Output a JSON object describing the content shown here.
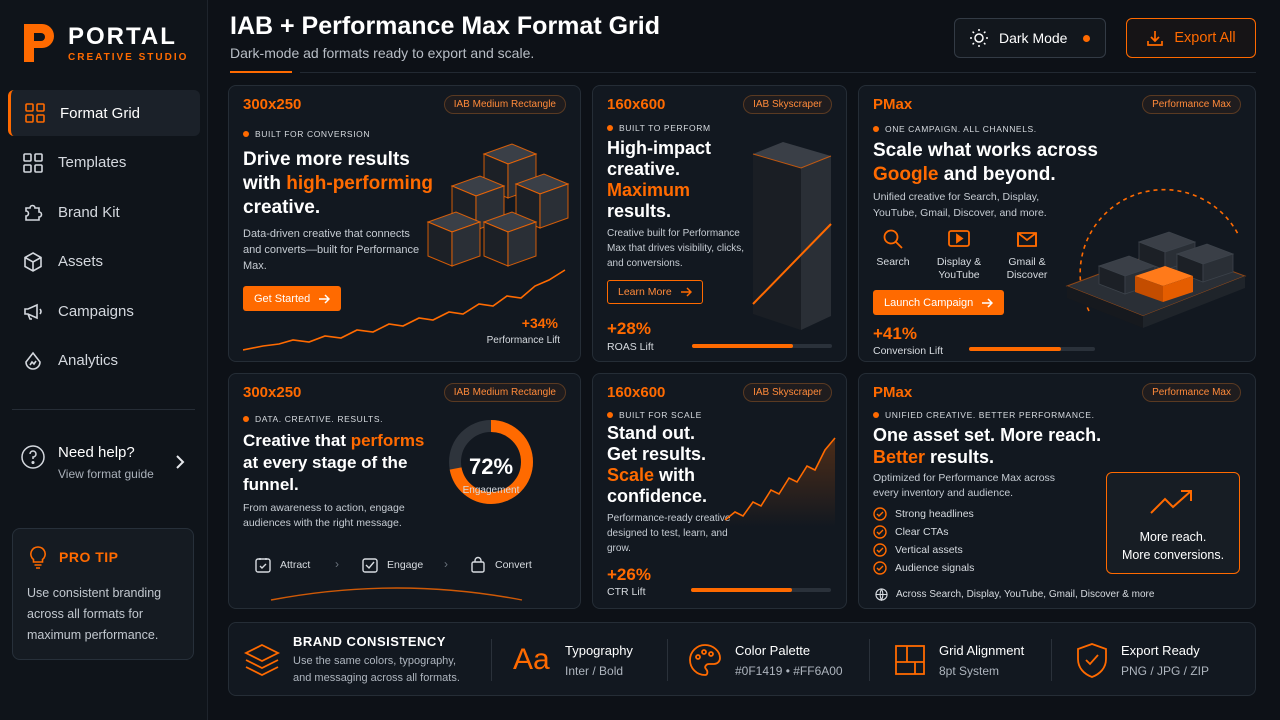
{
  "sidebar": {
    "brand": "PORTAL",
    "brand_sub": "CREATIVE STUDIO",
    "items": [
      {
        "label": "Format Grid"
      },
      {
        "label": "Templates"
      },
      {
        "label": "Brand Kit"
      },
      {
        "label": "Assets"
      },
      {
        "label": "Campaigns"
      },
      {
        "label": "Analytics"
      }
    ],
    "help_title": "Need help?",
    "help_sub": "View format guide",
    "tip_title": "PRO TIP",
    "tip_body": "Use consistent branding across all formats for maximum performance."
  },
  "header": {
    "title": "IAB + Performance Max Format Grid",
    "subtitle": "Dark-mode ad formats ready to export and scale.",
    "dark_mode_label": "Dark Mode",
    "export_label": "Export All"
  },
  "cards": {
    "c1": {
      "size": "300x250",
      "badge": "IAB Medium Rectangle",
      "kicker": "BUILT FOR CONVERSION",
      "h_a": "Drive more results",
      "h_b": "with ",
      "h_c": "high-performing",
      "h_d": "creative.",
      "body": "Data-driven creative that connects and converts—built for Performance Max.",
      "cta": "Get Started",
      "stat": "+34%",
      "stat_label": "Performance Lift"
    },
    "c2": {
      "size": "160x600",
      "badge": "IAB Skyscraper",
      "kicker": "BUILT TO PERFORM",
      "h_a": "High-impact",
      "h_b": "creative.",
      "h_c": "Maximum",
      "h_d": "results.",
      "body": "Creative built for Performance Max that drives visibility, clicks, and conversions.",
      "cta": "Learn More",
      "stat": "+28%",
      "stat_label": "ROAS Lift",
      "progress": 0.72
    },
    "c3": {
      "size": "PMax",
      "badge": "Performance Max",
      "kicker": "ONE CAMPAIGN. ALL CHANNELS.",
      "h_a": "Scale what works across",
      "h_b": "Google",
      "h_c": " and beyond.",
      "body": "Unified creative for Search, Display, YouTube, Gmail, Discover, and more.",
      "channels": [
        {
          "label": "Search",
          "icon": "search-icon"
        },
        {
          "label": "Display & YouTube",
          "icon": "play-icon"
        },
        {
          "label": "Gmail & Discover",
          "icon": "mail-icon"
        }
      ],
      "cta": "Launch Campaign",
      "stat": "+41%",
      "stat_label": "Conversion Lift",
      "progress": 0.73
    },
    "c4": {
      "size": "300x250",
      "badge": "IAB Medium Rectangle",
      "kicker": "DATA. CREATIVE. RESULTS.",
      "h_a": "Creative that ",
      "h_b": "performs",
      "h_c": "at every stage of the",
      "h_d": "funnel.",
      "body": "From awareness to action, engage audiences with the right message.",
      "donut_value": "72%",
      "donut_label": "Engagement",
      "donut_fraction": 0.72,
      "steps": [
        "Attract",
        "Engage",
        "Convert"
      ]
    },
    "c5": {
      "size": "160x600",
      "badge": "IAB Skyscraper",
      "kicker": "BUILT FOR SCALE",
      "h_a": "Stand out.",
      "h_b": "Get results.",
      "h_c": "Scale",
      "h_d": " with",
      "h_e": "confidence.",
      "body": "Performance-ready creative designed to test, learn, and grow.",
      "stat": "+26%",
      "stat_label": "CTR Lift",
      "progress": 0.72
    },
    "c6": {
      "size": "PMax",
      "badge": "Performance Max",
      "kicker": "UNIFIED CREATIVE. BETTER PERFORMANCE.",
      "h_a": "One asset set. More reach.",
      "h_b": "Better",
      "h_c": " results.",
      "body": "Optimized for Performance Max across every inventory and audience.",
      "checks": [
        "Strong headlines",
        "Clear CTAs",
        "Vertical assets",
        "Audience signals"
      ],
      "reach_a": "More reach.",
      "reach_b": "More conversions.",
      "footer": "Across Search, Display, YouTube, Gmail, Discover & more"
    }
  },
  "strip": {
    "brand_title": "BRAND CONSISTENCY",
    "brand_body": "Use the same colors, typography, and messaging across all formats.",
    "type_icon": "Aa",
    "type_title": "Typography",
    "type_sub": "Inter / Bold",
    "color_title": "Color Palette",
    "color_sub": "#0F1419 • #FF6A00",
    "grid_title": "Grid Alignment",
    "grid_sub": "8pt System",
    "export_title": "Export Ready",
    "export_sub": "PNG / JPG / ZIP"
  },
  "colors": {
    "accent": "#FF6A00",
    "background": "#0F1419"
  }
}
